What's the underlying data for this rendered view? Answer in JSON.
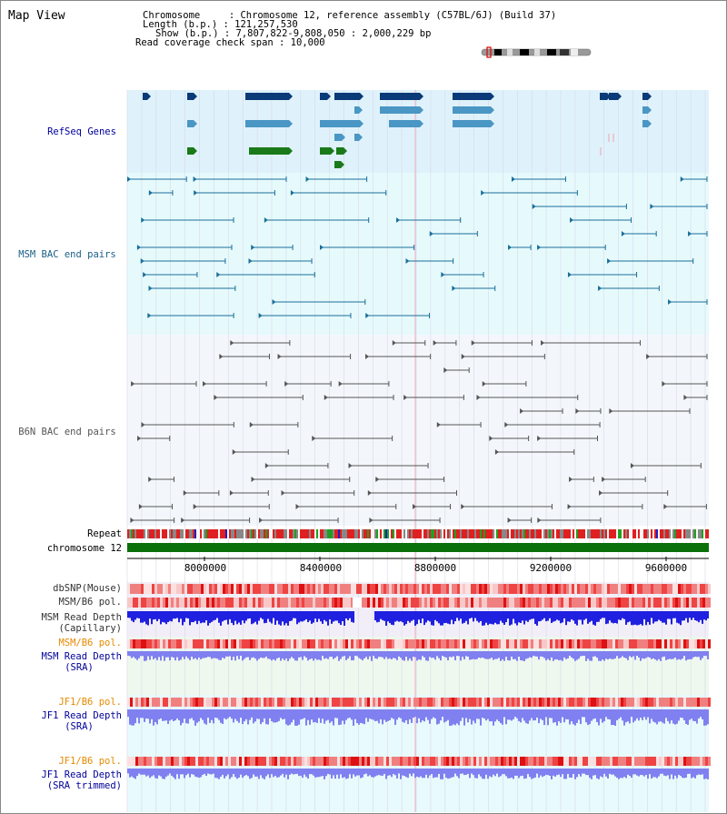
{
  "title": "Map View",
  "info": {
    "chromosome_label": "Chromosome     : Chromosome 12, reference assembly (C57BL/6J) (Build 37)",
    "length_label": "Length (b.p.) : 121,257,530",
    "show_label": "Show (b.p.) : 7,807,822-9,808,050 : 2,000,229 bp",
    "coverage_label": "Read coverage check span : 10,000"
  },
  "tracks": {
    "refseq": "RefSeq Genes",
    "msm_bac": "MSM BAC end pairs",
    "b6n_bac": "B6N BAC end pairs",
    "repeat": "Repeat",
    "chromosome": "chromosome 12",
    "dbsnp": "dbSNP(Mouse)",
    "msm_pol": "MSM/B6 pol.",
    "msm_depth_cap_1": "MSM Read Depth",
    "msm_depth_cap_2": "(Capillary)",
    "msm_pol_2": "MSM/B6 pol.",
    "msm_depth_sra_1": "MSM Read Depth",
    "msm_depth_sra_2": "(SRA)",
    "jf1_pol": "JF1/B6 pol.",
    "jf1_depth_sra_1": "JF1 Read Depth",
    "jf1_depth_sra_2": "(SRA)",
    "jf1_pol_2": "JF1/B6 pol.",
    "jf1_depth_trim_1": "JF1 Read Depth",
    "jf1_depth_trim_2": "(SRA trimmed)"
  },
  "axis": {
    "ticks": [
      "8000000",
      "8400000",
      "8800000",
      "9200000",
      "9600000"
    ]
  },
  "colors": {
    "refseq_bg": "#dff2fb",
    "msm_bg": "#e6fafc",
    "b6n_bg": "#f3f7fb",
    "gene_navy": "#0a3a78",
    "gene_light": "#4a96c4",
    "gene_green": "#1a7a1a",
    "msm_line": "#1a6f9a",
    "b6n_line": "#555555",
    "chrom_green": "#0a700a",
    "depth_blue": "#2020e0",
    "depth_violet": "#8080f0",
    "pol_red": "#ef3838",
    "label_navy": "#000099",
    "label_orange": "#e68a00",
    "label_teal": "#1a5f86"
  }
}
